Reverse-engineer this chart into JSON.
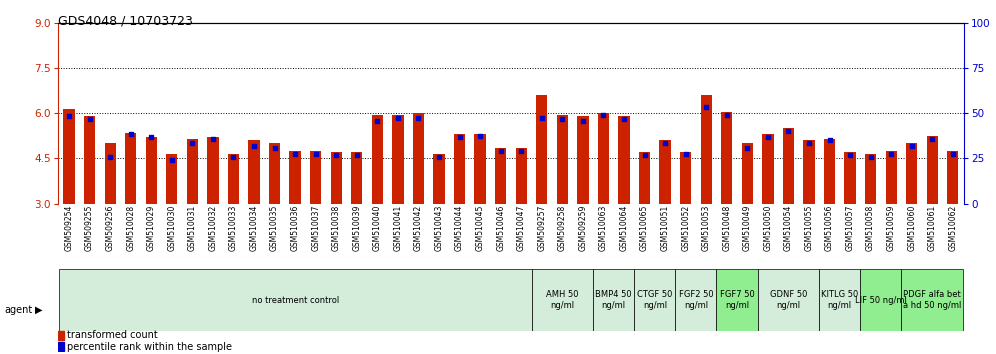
{
  "title": "GDS4048 / 10703723",
  "samples": [
    "GSM509254",
    "GSM509255",
    "GSM509256",
    "GSM510028",
    "GSM510029",
    "GSM510030",
    "GSM510031",
    "GSM510032",
    "GSM510033",
    "GSM510034",
    "GSM510035",
    "GSM510036",
    "GSM510037",
    "GSM510038",
    "GSM510039",
    "GSM510040",
    "GSM510041",
    "GSM510042",
    "GSM510043",
    "GSM510044",
    "GSM510045",
    "GSM510046",
    "GSM510047",
    "GSM509257",
    "GSM509258",
    "GSM509259",
    "GSM510063",
    "GSM510064",
    "GSM510065",
    "GSM510051",
    "GSM510052",
    "GSM510053",
    "GSM510048",
    "GSM510049",
    "GSM510050",
    "GSM510054",
    "GSM510055",
    "GSM510056",
    "GSM510057",
    "GSM510058",
    "GSM510059",
    "GSM510060",
    "GSM510061",
    "GSM510062"
  ],
  "red_values": [
    6.15,
    5.9,
    5.0,
    5.35,
    5.2,
    4.65,
    5.15,
    5.2,
    4.65,
    5.1,
    5.0,
    4.75,
    4.75,
    4.7,
    4.7,
    5.95,
    5.95,
    6.0,
    4.65,
    5.3,
    5.3,
    4.85,
    4.85,
    6.6,
    5.95,
    5.9,
    6.0,
    5.9,
    4.7,
    5.1,
    4.7,
    6.6,
    6.05,
    5.0,
    5.3,
    5.5,
    5.1,
    5.15,
    4.7,
    4.65,
    4.75,
    5.0,
    5.25,
    4.75
  ],
  "blue_values": [
    5.9,
    5.8,
    4.55,
    5.3,
    5.2,
    4.45,
    5.0,
    5.15,
    4.55,
    4.9,
    4.85,
    4.65,
    4.65,
    4.6,
    4.6,
    5.75,
    5.85,
    5.85,
    4.55,
    5.2,
    5.25,
    4.75,
    4.75,
    5.85,
    5.8,
    5.75,
    5.95,
    5.8,
    4.6,
    5.0,
    4.65,
    6.2,
    5.95,
    4.85,
    5.2,
    5.4,
    5.0,
    5.1,
    4.6,
    4.55,
    4.65,
    4.9,
    5.15,
    4.65
  ],
  "groups": [
    {
      "label": "no treatment control",
      "start": 0,
      "end": 23,
      "color": "#d4edda"
    },
    {
      "label": "AMH 50\nng/ml",
      "start": 23,
      "end": 26,
      "color": "#d4edda"
    },
    {
      "label": "BMP4 50\nng/ml",
      "start": 26,
      "end": 28,
      "color": "#d4edda"
    },
    {
      "label": "CTGF 50\nng/ml",
      "start": 28,
      "end": 30,
      "color": "#d4edda"
    },
    {
      "label": "FGF2 50\nng/ml",
      "start": 30,
      "end": 32,
      "color": "#d4edda"
    },
    {
      "label": "FGF7 50\nng/ml",
      "start": 32,
      "end": 34,
      "color": "#90ee90"
    },
    {
      "label": "GDNF 50\nng/ml",
      "start": 34,
      "end": 37,
      "color": "#d4edda"
    },
    {
      "label": "KITLG 50\nng/ml",
      "start": 37,
      "end": 39,
      "color": "#d4edda"
    },
    {
      "label": "LIF 50 ng/ml",
      "start": 39,
      "end": 41,
      "color": "#90ee90"
    },
    {
      "label": "PDGF alfa bet\na hd 50 ng/ml",
      "start": 41,
      "end": 44,
      "color": "#90ee90"
    }
  ],
  "ylim": [
    3,
    9
  ],
  "y2lim": [
    0,
    100
  ],
  "yticks": [
    3,
    4.5,
    6,
    7.5,
    9
  ],
  "y2ticks": [
    0,
    25,
    50,
    75,
    100
  ],
  "hlines": [
    4.5,
    6.0,
    7.5
  ],
  "bar_color": "#cc2200",
  "dot_color": "#0000cc",
  "bar_width": 0.55,
  "ylabel_color": "#cc2200",
  "y2label_color": "#0000cc",
  "title_fontsize": 9,
  "tick_fontsize": 7.5,
  "label_fontsize": 5.5,
  "group_fontsize": 6.0,
  "legend_fontsize": 7
}
